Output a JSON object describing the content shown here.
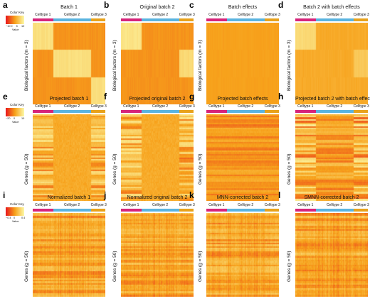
{
  "colors": {
    "celltype1": "#d6247a",
    "celltype2": "#5ab4e0",
    "celltype3": "#e8a21b",
    "low": "#e8161d",
    "mid": "#f7a21b",
    "high": "#fcf9a8"
  },
  "celltypes": [
    "Celltype 1",
    "Celltype 2",
    "Celltype 3"
  ],
  "colorkeys": [
    {
      "title": "Color Key",
      "ticks": [
        "−10",
        "0",
        "5",
        "10"
      ],
      "value_label": "Value"
    },
    {
      "title": "Color Key",
      "ticks": [
        "−20",
        "0",
        "10"
      ],
      "value_label": "Value"
    },
    {
      "title": "Color Key",
      "ticks": [
        "−0.4",
        "0",
        "0.4"
      ],
      "value_label": "Value"
    }
  ],
  "panels": [
    {
      "letter": "a",
      "title": "Batch 1",
      "ylabel": "Biological factors (m = 3)",
      "pattern": "bio1"
    },
    {
      "letter": "b",
      "title": "Original batch 2",
      "ylabel": "Biological factors (m = 3)",
      "pattern": "bio2"
    },
    {
      "letter": "c",
      "title": "Batch effects",
      "ylabel": "Biological factors (m = 3)",
      "pattern": "flat"
    },
    {
      "letter": "d",
      "title": "Batch 2 with batch effects",
      "ylabel": "Biological factors (m = 3)",
      "pattern": "bio2b"
    },
    {
      "letter": "e",
      "title": "Projected batch 1",
      "ylabel": "Genes (g = 50)",
      "pattern": "genes1"
    },
    {
      "letter": "f",
      "title": "Projected original batch 2",
      "ylabel": "Genes (g = 50)",
      "pattern": "genes2"
    },
    {
      "letter": "g",
      "title": "Projected batch effects",
      "ylabel": "Genes (g = 50)",
      "pattern": "genesflat"
    },
    {
      "letter": "h",
      "title": "Projected batch 2 with batch effects",
      "ylabel": "Genes (g = 50)",
      "pattern": "genes2b"
    },
    {
      "letter": "i",
      "title": "Normalized batch 1",
      "ylabel": "Genes (g = 50)",
      "pattern": "norm1"
    },
    {
      "letter": "j",
      "title": "Normalized original batch 2",
      "ylabel": "Genes (g = 50)",
      "pattern": "norm2"
    },
    {
      "letter": "k",
      "title": "MNN-corrected batch 2",
      "ylabel": "Genes (g = 50)",
      "pattern": "mnn"
    },
    {
      "letter": "l",
      "title": "SMNN-corrected batch 2",
      "ylabel": "Genes (g = 50)",
      "pattern": "smnn"
    }
  ]
}
